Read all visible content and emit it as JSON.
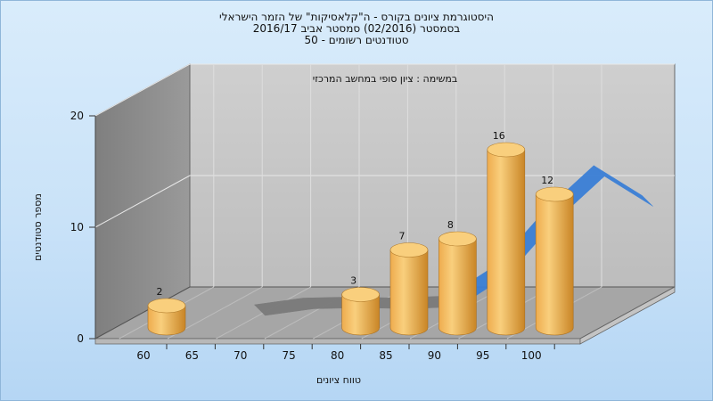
{
  "chart_data": {
    "type": "bar",
    "title_lines": [
      "היסטוגרמת ציונים בקורס - ה\"קלאסיקות\" של הזמר הישראלי",
      "בסמסטר  (02/2016)  סמסטר אביב 2016/17",
      "סטודנטים רשומים - 50"
    ],
    "subtitle": "במשימה : ציון סופי במחשב המרכזי",
    "xlabel": "טווח ציונים",
    "ylabel": "מספר סטודנטים",
    "x_ticks": [
      "60",
      "65",
      "70",
      "75",
      "80",
      "85",
      "90",
      "95",
      "100"
    ],
    "y_ticks": [
      "0",
      "10",
      "20"
    ],
    "ylim": [
      0,
      20
    ],
    "grid": true,
    "bars": [
      {
        "bin": 60,
        "value": 2,
        "label": "2"
      },
      {
        "bin": 80,
        "value": 3,
        "label": "3"
      },
      {
        "bin": 85,
        "value": 7,
        "label": "7"
      },
      {
        "bin": 90,
        "value": 8,
        "label": "8"
      },
      {
        "bin": 95,
        "value": 16,
        "label": "16"
      },
      {
        "bin": 100,
        "value": 12,
        "label": "12"
      }
    ],
    "curve": [
      {
        "x": 65,
        "y": 0
      },
      {
        "x": 70,
        "y": 0.6
      },
      {
        "x": 75,
        "y": 0.7
      },
      {
        "x": 80,
        "y": 0.6
      },
      {
        "x": 85,
        "y": 0.8
      },
      {
        "x": 90,
        "y": 3.6
      },
      {
        "x": 95,
        "y": 8.5
      },
      {
        "x": 100,
        "y": 12.5
      },
      {
        "x": 105,
        "y": 9.8
      }
    ],
    "colors": {
      "bar_light": "#f9cf7d",
      "bar_mid": "#eeac4e",
      "bar_dark": "#c98526",
      "curve_high": "#3a7fd6",
      "curve_low": "#7a7a7a",
      "back_wall": "#c8c8c8",
      "side_wall": "#8c8c8c",
      "floor": "#a9a9a9"
    }
  }
}
